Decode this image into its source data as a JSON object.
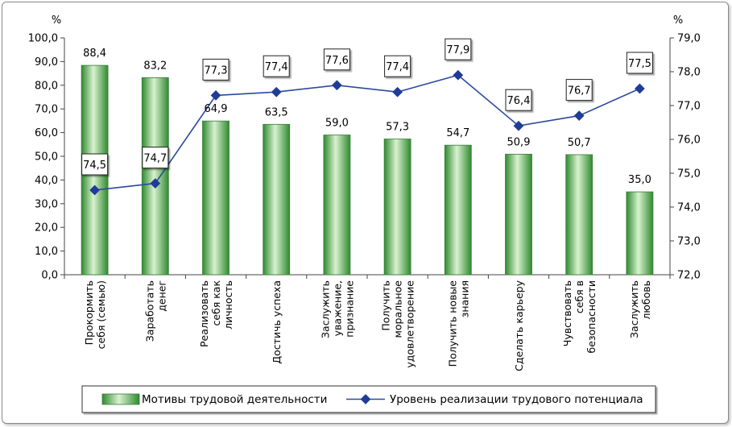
{
  "chart_data": {
    "type": "bar+line",
    "categories": [
      [
        "Прокормить",
        "себя (семью)"
      ],
      [
        "Заработать",
        "денег"
      ],
      [
        "Реализовать",
        "себя как",
        "личность"
      ],
      [
        "Достичь успеха"
      ],
      [
        "Заслужить",
        "уважение,",
        "признание"
      ],
      [
        "Получить",
        "моральное",
        "удовлетворение"
      ],
      [
        "Получить новые",
        "знания"
      ],
      [
        "Сделать карьеру"
      ],
      [
        "Чувствовать",
        "себя в",
        "безопасности"
      ],
      [
        "Заслужить",
        "любовь"
      ]
    ],
    "series": [
      {
        "name": "Мотивы трудовой деятельности",
        "kind": "bar",
        "axis": "left",
        "values": [
          88.4,
          83.2,
          64.9,
          63.5,
          59.0,
          57.3,
          54.7,
          50.9,
          50.7,
          35.0
        ],
        "labels": [
          "88,4",
          "83,2",
          "64,9",
          "63,5",
          "59,0",
          "57,3",
          "54,7",
          "50,9",
          "50,7",
          "35,0"
        ]
      },
      {
        "name": "Уровень реализации трудового потенциала",
        "kind": "line",
        "axis": "right",
        "values": [
          74.5,
          74.7,
          77.3,
          77.4,
          77.6,
          77.4,
          77.9,
          76.4,
          76.7,
          77.5
        ],
        "labels": [
          "74,5",
          "74,7",
          "77,3",
          "77,4",
          "77,6",
          "77,4",
          "77,9",
          "76,4",
          "76,7",
          "77,5"
        ]
      }
    ],
    "y_left": {
      "unit": "%",
      "ylim": [
        0,
        100
      ],
      "ticks": [
        "0,0",
        "10,0",
        "20,0",
        "30,0",
        "40,0",
        "50,0",
        "60,0",
        "70,0",
        "80,0",
        "90,0",
        "100,0"
      ]
    },
    "y_right": {
      "unit": "%",
      "ylim": [
        72,
        79
      ],
      "ticks": [
        "72,0",
        "73,0",
        "74,0",
        "75,0",
        "76,0",
        "77,0",
        "78,0",
        "79,0"
      ]
    },
    "legend": {
      "placement": "bottom",
      "items": [
        "Мотивы трудовой деятельности",
        "Уровень реализации трудового потенциала"
      ]
    },
    "colors": {
      "bar_dark": "#2f8a2f",
      "bar_light": "#d9f2d0",
      "bar_edge": "#3c7d3c",
      "line": "#2c4a9c",
      "marker": "#1f3c96"
    },
    "grid": false
  }
}
